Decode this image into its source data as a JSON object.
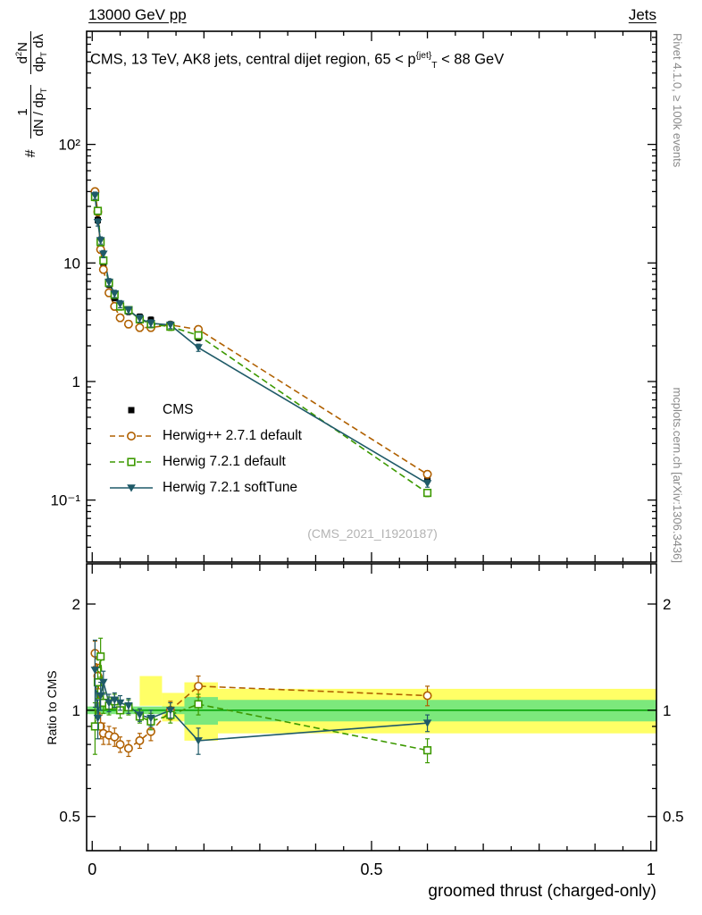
{
  "header": {
    "left": "13000 GeV pp",
    "right": "Jets"
  },
  "main_panel": {
    "title": "CMS, 13 TeV, AK8 jets, central dijet region, 65 < p^({jet})_(T) < 88 GeV",
    "watermark": "(CMS_2021_I1920187)",
    "ylabel_prefix": "#",
    "ylabel_frac1_num": "1",
    "ylabel_frac1_den": "dN / dp_(T)",
    "ylabel_frac2_num": "d^(2)N",
    "ylabel_frac2_den": "dp_(T) dλ"
  },
  "ratio_panel": {
    "ylabel": "Ratio to CMS"
  },
  "xaxis": {
    "label": "groomed thrust (charged-only)"
  },
  "side_notes": {
    "top": "Rivet 4.1.0, ≥ 100k events",
    "bottom": "mcplots.cern.ch [arXiv:1306.3436]"
  },
  "legend": [
    {
      "label": "CMS",
      "marker": "square-filled",
      "color": "#000000",
      "line": "none"
    },
    {
      "label": "Herwig++ 2.7.1 default",
      "marker": "circle-open",
      "color": "#b06000",
      "line": "dashed"
    },
    {
      "label": "Herwig 7.2.1 default",
      "marker": "square-open",
      "color": "#3c9900",
      "line": "dashed"
    },
    {
      "label": "Herwig 7.2.1 softTune",
      "marker": "triangle-down-filled",
      "color": "#1f5a68",
      "line": "solid"
    }
  ],
  "chart_data": {
    "type": "line",
    "title": "CMS, 13 TeV, AK8 jets, central dijet region, 65 < pT(jet) < 88 GeV",
    "xlabel": "groomed thrust (charged-only)",
    "xlim": [
      -0.01,
      1.01
    ],
    "xticks": [
      {
        "v": 0,
        "label": "0"
      },
      {
        "v": 0.5,
        "label": "0.5"
      },
      {
        "v": 1,
        "label": "1"
      }
    ],
    "x": [
      0.005,
      0.01,
      0.015,
      0.02,
      0.03,
      0.04,
      0.05,
      0.065,
      0.085,
      0.105,
      0.14,
      0.19,
      0.6
    ],
    "main": {
      "ylog": true,
      "ylim": [
        0.03,
        900
      ],
      "yticks": [
        {
          "v": 100,
          "label": "10²"
        },
        {
          "v": 10,
          "label": "10"
        },
        {
          "v": 1,
          "label": "1"
        },
        {
          "v": 0.1,
          "label": "10⁻¹"
        }
      ],
      "series": [
        {
          "name": "CMS",
          "color": "#000000",
          "marker": "square-filled",
          "line": "none",
          "err_frac": 0.06,
          "values": [
            38,
            23,
            14,
            10,
            6.6,
            5.1,
            4.3,
            3.9,
            3.5,
            3.3,
            3.0,
            2.35,
            0.15
          ]
        },
        {
          "name": "Herwig++ 2.7.1 default",
          "color": "#b06000",
          "marker": "circle-open",
          "line": "dashed",
          "err_frac": 0.07,
          "values": [
            40,
            27,
            13,
            8.8,
            5.6,
            4.3,
            3.45,
            3.05,
            2.85,
            2.85,
            3.0,
            2.75,
            0.165
          ]
        },
        {
          "name": "Herwig 7.2.1 default",
          "color": "#3c9900",
          "marker": "square-open",
          "line": "dashed",
          "err_frac": 0.07,
          "values": [
            36,
            27.5,
            15,
            10.5,
            6.8,
            5.4,
            4.3,
            4.0,
            3.35,
            3.05,
            2.9,
            2.45,
            0.115
          ]
        },
        {
          "name": "Herwig 7.2.1 softTune",
          "color": "#1f5a68",
          "marker": "triangle-down-filled",
          "line": "solid",
          "err_frac": 0.07,
          "values": [
            37,
            22,
            15.5,
            11.9,
            6.9,
            5.5,
            4.5,
            4.0,
            3.4,
            3.1,
            3.0,
            1.93,
            0.138
          ]
        }
      ]
    },
    "ratio": {
      "ylog": true,
      "ylim": [
        0.4,
        2.6
      ],
      "yticks": [
        {
          "v": 2,
          "label": "2"
        },
        {
          "v": 1,
          "label": "1"
        },
        {
          "v": 0.5,
          "label": "0.5"
        }
      ],
      "ref_line": {
        "y": 1,
        "color": "#00a000"
      },
      "band_colors": {
        "yellow": "#ffff66",
        "green": "#7ce87c"
      },
      "bands": {
        "yellow": [
          {
            "x0": 0.085,
            "x1": 0.125,
            "lo": 1.03,
            "hi": 1.25
          },
          {
            "x0": 0.125,
            "x1": 0.165,
            "lo": 0.93,
            "hi": 1.12
          },
          {
            "x0": 0.165,
            "x1": 0.225,
            "lo": 0.82,
            "hi": 1.2
          },
          {
            "x0": 0.225,
            "x1": 1.01,
            "lo": 0.86,
            "hi": 1.15
          }
        ],
        "green": [
          {
            "x0": 0.165,
            "x1": 0.225,
            "lo": 0.91,
            "hi": 1.09
          },
          {
            "x0": 0.225,
            "x1": 1.01,
            "lo": 0.93,
            "hi": 1.07
          },
          {
            "x0": -0.01,
            "x1": 1.01,
            "lo": 0.975,
            "hi": 1.025
          }
        ]
      },
      "series": [
        {
          "name": "Herwig++ 2.7.1 default",
          "color": "#b06000",
          "marker": "circle-open",
          "line": "dashed",
          "values": [
            1.45,
            1.25,
            0.9,
            0.86,
            0.85,
            0.84,
            0.8,
            0.78,
            0.82,
            0.87,
            1.0,
            1.17,
            1.1
          ],
          "err": [
            0.12,
            0.1,
            0.07,
            0.06,
            0.05,
            0.05,
            0.04,
            0.04,
            0.04,
            0.05,
            0.06,
            0.08,
            0.07
          ]
        },
        {
          "name": "Herwig 7.2.1 default",
          "color": "#3c9900",
          "marker": "square-open",
          "line": "dashed",
          "values": [
            0.9,
            1.2,
            1.42,
            1.05,
            1.03,
            1.06,
            1.0,
            1.02,
            0.96,
            0.93,
            0.97,
            1.04,
            0.77
          ],
          "err": [
            0.15,
            0.12,
            0.18,
            0.07,
            0.06,
            0.05,
            0.05,
            0.05,
            0.04,
            0.05,
            0.05,
            0.07,
            0.06
          ]
        },
        {
          "name": "Herwig 7.2.1 softTune",
          "color": "#1f5a68",
          "marker": "triangle-down-filled",
          "line": "solid",
          "values": [
            1.3,
            0.95,
            1.1,
            1.2,
            1.05,
            1.07,
            1.05,
            1.03,
            0.97,
            0.95,
            1.0,
            0.82,
            0.92
          ],
          "err": [
            0.28,
            0.12,
            0.1,
            0.09,
            0.06,
            0.05,
            0.05,
            0.05,
            0.04,
            0.05,
            0.05,
            0.07,
            0.05
          ]
        }
      ]
    }
  }
}
